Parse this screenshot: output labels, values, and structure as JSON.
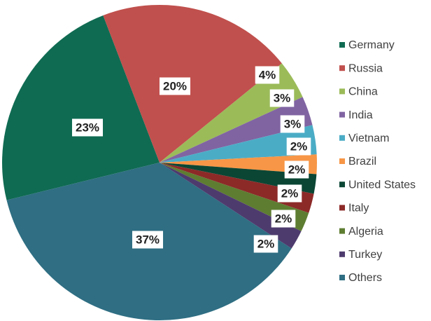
{
  "chart_data": {
    "type": "pie",
    "categories": [
      "Germany",
      "Russia",
      "China",
      "India",
      "Vietnam",
      "Brazil",
      "United States",
      "Italy",
      "Algeria",
      "Turkey",
      "Others"
    ],
    "values": [
      23,
      20,
      4,
      3,
      3,
      2,
      2,
      2,
      2,
      2,
      37
    ],
    "value_labels": [
      "23%",
      "20%",
      "4%",
      "3%",
      "3%",
      "2%",
      "2%",
      "2%",
      "2%",
      "2%",
      "37%"
    ],
    "colors": [
      "#0f6b52",
      "#c0504d",
      "#9bbb59",
      "#8064a2",
      "#4bacc6",
      "#f79646",
      "#0b4634",
      "#8c2a28",
      "#5e7d31",
      "#4e3b6e",
      "#2f6e83"
    ],
    "legend": "right"
  }
}
